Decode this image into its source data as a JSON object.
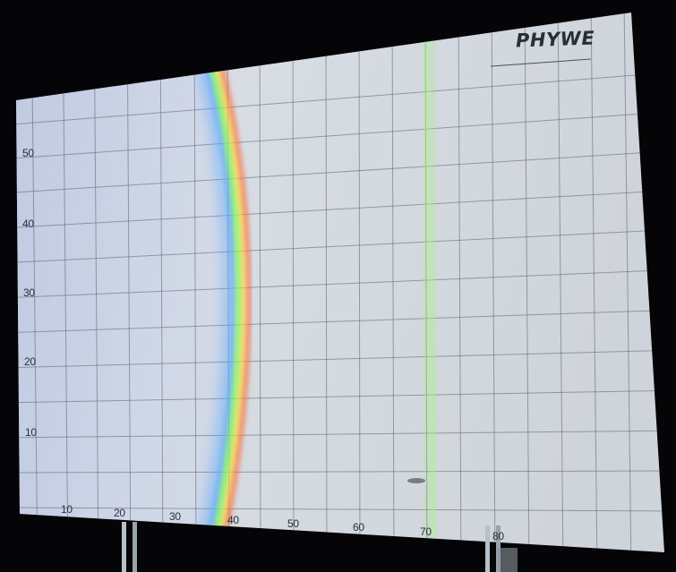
{
  "photo": {
    "brand": "PHYWE",
    "brand_subtext": "",
    "y_axis_ticks": [
      "50",
      "40",
      "30",
      "20",
      "10"
    ],
    "x_axis_ticks": [
      "10",
      "20",
      "30",
      "40",
      "50",
      "60",
      "70",
      "80"
    ],
    "fine_print": "",
    "colors": {
      "background": "#050508",
      "screen": "#d7dce3",
      "grid": "#5c6270",
      "arc_red": "#ff5a2a",
      "arc_yellow": "#ffe23a",
      "arc_green": "#7cff52",
      "arc_blue": "#5aa8ff",
      "line_green": "#9cf070"
    }
  }
}
